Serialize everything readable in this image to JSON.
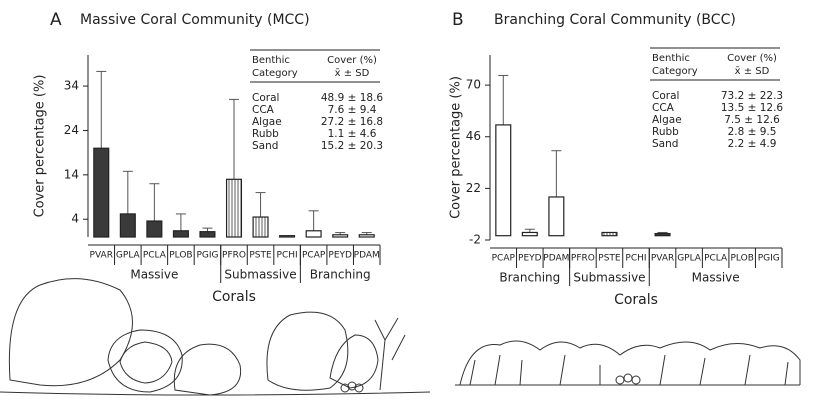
{
  "chart_data": [
    {
      "type": "bar",
      "panel_label": "A",
      "title": "Massive Coral Community (MCC)",
      "ylabel": "Cover percentage (%)",
      "xlabel": "Corals",
      "categories": [
        "PVAR",
        "GPLA",
        "PCLA",
        "PLOB",
        "PGIG",
        "PFRO",
        "PSTE",
        "PCHI",
        "PCAP",
        "PEYD",
        "PDAM"
      ],
      "values": [
        20,
        5.2,
        3.6,
        1.4,
        1.2,
        13,
        4.5,
        0.3,
        1.4,
        0.5,
        0.5
      ],
      "errors": [
        17.3,
        9.6,
        8.4,
        3.8,
        0.8,
        18,
        5.5,
        0,
        4.5,
        0.5,
        0.5
      ],
      "groups": [
        {
          "label": "Massive",
          "size": 5,
          "fill": "#3a3a3a"
        },
        {
          "label": "Submassive",
          "size": 3,
          "fill": "hatch"
        },
        {
          "label": "Branching",
          "size": 3,
          "fill": "#ffffff"
        }
      ],
      "ylim": [
        0,
        41
      ],
      "yticks": [
        4,
        14,
        24,
        34
      ],
      "table": {
        "header": [
          [
            "Benthic",
            "Category"
          ],
          [
            "Cover (%)",
            "x̄ ± SD"
          ]
        ],
        "rows": [
          [
            "Coral",
            "48.9 ± 18.6"
          ],
          [
            "CCA",
            "7.6 ± 9.4"
          ],
          [
            "Algae",
            "27.2 ± 16.8"
          ],
          [
            "Rubb",
            "1.1 ± 4.6"
          ],
          [
            "Sand",
            "15.2 ± 20.3"
          ]
        ]
      }
    },
    {
      "type": "bar",
      "panel_label": "B",
      "title": "Branching Coral Community (BCC)",
      "ylabel": "Cover percentage (%)",
      "xlabel": "Corals",
      "categories": [
        "PCAP",
        "PEYD",
        "PDAM",
        "PFRO",
        "PSTE",
        "PCHI",
        "PVAR",
        "GPLA",
        "PCLA",
        "PLOB",
        "PGIG"
      ],
      "values": [
        51.5,
        1.5,
        18,
        0,
        1.5,
        0,
        1,
        0,
        0,
        0,
        0
      ],
      "errors": [
        23,
        1.5,
        21.5,
        0,
        0,
        0,
        0.5,
        0,
        0,
        0,
        0
      ],
      "groups": [
        {
          "label": "Branching",
          "size": 3,
          "fill": "#ffffff"
        },
        {
          "label": "Submassive",
          "size": 3,
          "fill": "hatch"
        },
        {
          "label": "Massive",
          "size": 5,
          "fill": "#3a3a3a"
        }
      ],
      "ylim": [
        -2,
        84
      ],
      "yticks": [
        -2,
        22,
        46,
        70
      ],
      "table": {
        "header": [
          [
            "Benthic",
            "Category"
          ],
          [
            "Cover (%)",
            "x̄ ± SD"
          ]
        ],
        "rows": [
          [
            "Coral",
            "73.2 ± 22.3"
          ],
          [
            "CCA",
            "13.5 ± 12.6"
          ],
          [
            "Algae",
            "7.5 ± 12.6"
          ],
          [
            "Rubb",
            "2.8 ± 9.5"
          ],
          [
            "Sand",
            "2.2 ± 4.9"
          ]
        ]
      }
    }
  ]
}
